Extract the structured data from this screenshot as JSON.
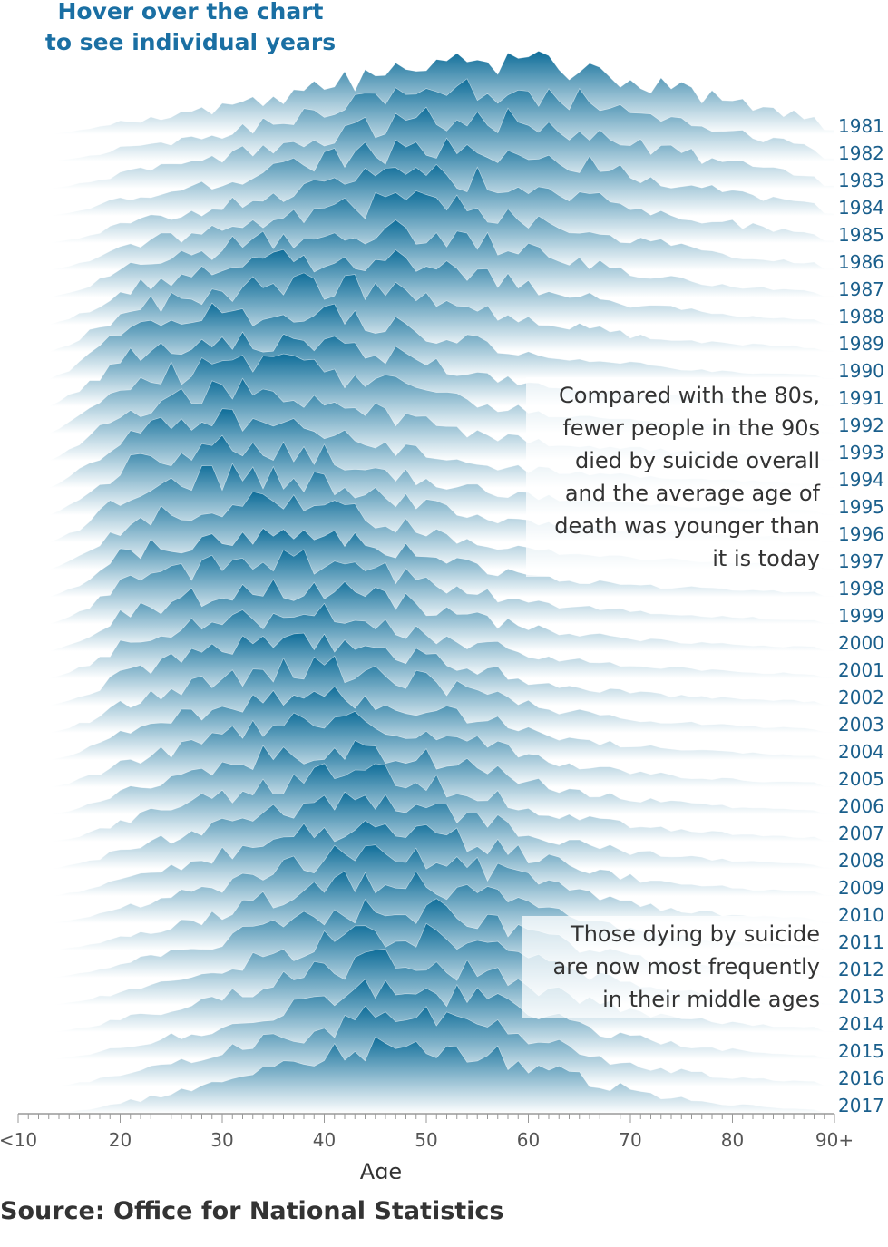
{
  "hover_hint": [
    "Hover over the chart",
    "to see individual years"
  ],
  "annotations": [
    {
      "lines": [
        "Compared with the 80s,",
        "fewer people in the 90s",
        "died by suicide overall",
        "and the average age of",
        "death was younger than",
        "it is today"
      ]
    },
    {
      "lines": [
        "Those dying by suicide",
        "are now most frequently",
        "in their middle ages"
      ]
    }
  ],
  "source": "Source: Office for National Statistics",
  "chart_data": {
    "type": "area",
    "subtype": "ridgeline",
    "xlabel": "Age",
    "x_ticks": [
      "<10",
      "20",
      "30",
      "40",
      "50",
      "60",
      "70",
      "80",
      "90+"
    ],
    "x_range": [
      10,
      90
    ],
    "colors": {
      "peak": "#0e6d99",
      "fade": "#ffffff",
      "axis": "#999999",
      "label": "#1a5f8c"
    },
    "ridge_profiles": {
      "1981": {
        "mode_age": 58,
        "spread": 17,
        "amplitude": 0.95
      },
      "1985": {
        "mode_age": 50,
        "spread": 18,
        "amplitude": 0.85
      },
      "1990": {
        "mode_age": 33,
        "spread": 16,
        "amplitude": 0.9
      },
      "1994": {
        "mode_age": 30,
        "spread": 13,
        "amplitude": 0.95
      },
      "2000": {
        "mode_age": 35,
        "spread": 14,
        "amplitude": 0.85
      },
      "2005": {
        "mode_age": 40,
        "spread": 14,
        "amplitude": 0.85
      },
      "2010": {
        "mode_age": 45,
        "spread": 13,
        "amplitude": 0.9
      },
      "2017": {
        "mode_age": 48,
        "spread": 13,
        "amplitude": 0.9
      }
    },
    "series": [
      {
        "name": "1981"
      },
      {
        "name": "1982"
      },
      {
        "name": "1983"
      },
      {
        "name": "1984"
      },
      {
        "name": "1985"
      },
      {
        "name": "1986"
      },
      {
        "name": "1987"
      },
      {
        "name": "1988"
      },
      {
        "name": "1989"
      },
      {
        "name": "1990"
      },
      {
        "name": "1991"
      },
      {
        "name": "1992"
      },
      {
        "name": "1993"
      },
      {
        "name": "1994"
      },
      {
        "name": "1995"
      },
      {
        "name": "1996"
      },
      {
        "name": "1997"
      },
      {
        "name": "1998"
      },
      {
        "name": "1999"
      },
      {
        "name": "2000"
      },
      {
        "name": "2001"
      },
      {
        "name": "2002"
      },
      {
        "name": "2003"
      },
      {
        "name": "2004"
      },
      {
        "name": "2005"
      },
      {
        "name": "2006"
      },
      {
        "name": "2007"
      },
      {
        "name": "2008"
      },
      {
        "name": "2009"
      },
      {
        "name": "2010"
      },
      {
        "name": "2011"
      },
      {
        "name": "2012"
      },
      {
        "name": "2013"
      },
      {
        "name": "2014"
      },
      {
        "name": "2015"
      },
      {
        "name": "2016"
      },
      {
        "name": "2017"
      }
    ]
  }
}
